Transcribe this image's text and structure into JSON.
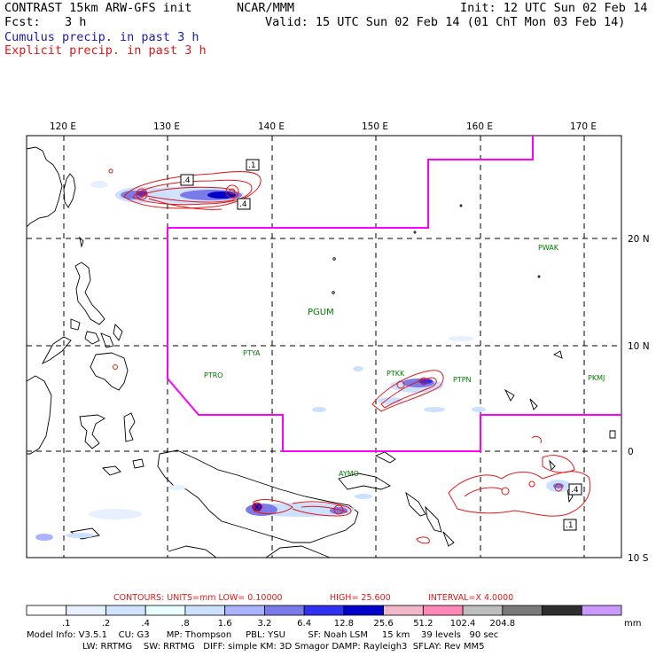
{
  "header": {
    "model_title": "CONTRAST 15km ARW-GFS init",
    "org": "NCAR/MMM",
    "init": "Init: 12 UTC Sun 02 Feb 14",
    "fcst_label": "Fcst:",
    "fcst_value": "3 h",
    "valid": "Valid: 15 UTC Sun 02 Feb 14 (01 ChT Mon 03 Feb 14)",
    "legend_cumulus": "Cumulus precip. in past 3 h",
    "legend_explicit": "Explicit precip. in past 3 h"
  },
  "colors": {
    "cumulus": "#1a1aa8",
    "explicit": "#e01818",
    "boundary": "#ff00ff",
    "station": "#007a00"
  },
  "map": {
    "lon_labels": [
      "120 E",
      "130 E",
      "140 E",
      "150 E",
      "160 E",
      "170 E"
    ],
    "lat_labels": [
      "20 N",
      "10 N",
      "0",
      "10 S"
    ],
    "stations": [
      {
        "id": "PWAK",
        "name": "PWAK"
      },
      {
        "id": "PGUM",
        "name": "PGUM"
      },
      {
        "id": "PTYA",
        "name": "PTYA"
      },
      {
        "id": "PTRO",
        "name": "PTRO"
      },
      {
        "id": "PTKK",
        "name": "PTKK"
      },
      {
        "id": "PTPN",
        "name": "PTPN"
      },
      {
        "id": "PKMJ",
        "name": "PKMJ"
      },
      {
        "id": "AYMO",
        "name": "AYMO"
      }
    ],
    "contour_labels": [
      ".4",
      ".1",
      ".4",
      ".4",
      ".1"
    ]
  },
  "contour_info": {
    "units_label": "CONTOURS:  UNITS=mm  LOW= 0.10000",
    "high_label": "HIGH=  25.600",
    "interval_label": "INTERVAL=X  4.0000"
  },
  "colorbar": {
    "unit": "mm",
    "ticks": [
      ".1",
      ".2",
      ".4",
      ".8",
      "1.6",
      "3.2",
      "6.4",
      "12.8",
      "25.6",
      "51.2",
      "102.4",
      "204.8"
    ],
    "fills": [
      "#ffffff",
      "#e6f0ff",
      "#cfe3ff",
      "#e8ffff",
      "#cce0ff",
      "#a9b3ff",
      "#7a7ae8",
      "#3030f0",
      "#0000c8",
      "#f0b8c8",
      "#ff88b8",
      "#bebebe",
      "#7a7a7a",
      "#2e2e2e",
      "#cc99ff"
    ]
  },
  "footer": {
    "line1": "Model Info: V3.5.1    CU: G3      MP: Thompson     PBL: YSU        SF: Noah LSM     15 km    39 levels   90 sec",
    "line2": "LW: RRTMG    SW: RRTMG   DIFF: simple KM: 3D Smagor DAMP: Rayleigh3  SFLAY: Rev MM5"
  }
}
